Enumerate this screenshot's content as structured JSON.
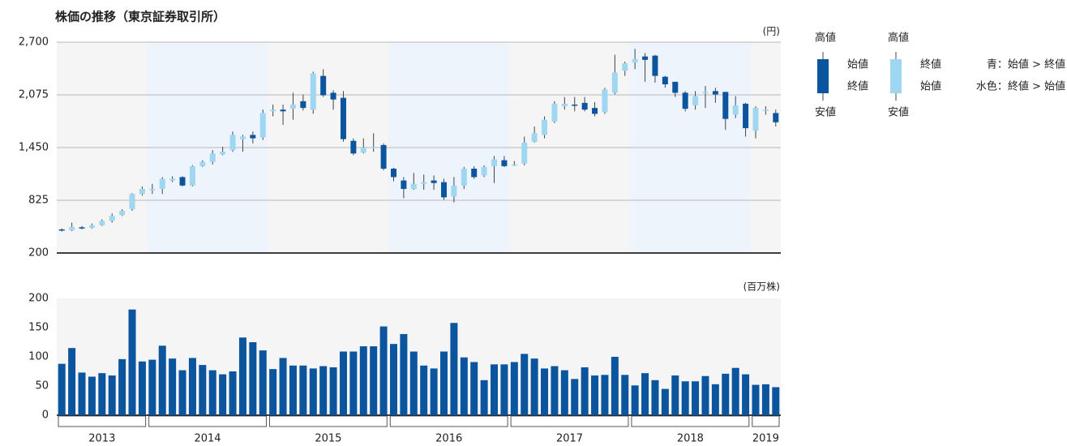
{
  "chart_data": [
    {
      "type": "candlestick",
      "title": "株価の推移（東京証券取引所）",
      "unit_label": "(円)",
      "open": [
        480,
        470,
        505,
        500,
        530,
        580,
        650,
        720,
        900,
        950,
        960,
        1060,
        1100,
        1000,
        1230,
        1280,
        1370,
        1420,
        1550,
        1600,
        1570,
        1880,
        1900,
        1910,
        2000,
        1900,
        2300,
        2100,
        2040,
        1530,
        1390,
        1450,
        1480,
        1200,
        1060,
        960,
        1020,
        1060,
        1040,
        870,
        1000,
        1200,
        1120,
        1230,
        1300,
        1240,
        1260,
        1520,
        1600,
        1760,
        1940,
        1960,
        1980,
        1920,
        1870,
        2100,
        2360,
        2460,
        2530,
        2540,
        2290,
        2230,
        2100,
        1950,
        2100,
        2120,
        2110,
        1840,
        1970,
        1650,
        1890,
        1860
      ],
      "high": [
        490,
        560,
        520,
        550,
        600,
        670,
        720,
        910,
        990,
        1020,
        1100,
        1110,
        1110,
        1240,
        1300,
        1420,
        1460,
        1640,
        1600,
        1640,
        1900,
        1960,
        1960,
        2100,
        2080,
        2350,
        2380,
        2130,
        2120,
        1560,
        1560,
        1620,
        1500,
        1210,
        1100,
        1150,
        1130,
        1120,
        1080,
        1100,
        1220,
        1230,
        1240,
        1350,
        1350,
        1290,
        1580,
        1700,
        1820,
        2000,
        2050,
        2050,
        2050,
        1990,
        2160,
        2550,
        2470,
        2620,
        2570,
        2550,
        2300,
        2230,
        2120,
        2120,
        2180,
        2160,
        2110,
        2060,
        1980,
        1940,
        1940,
        1900
      ],
      "low": [
        455,
        460,
        480,
        490,
        520,
        560,
        640,
        700,
        880,
        900,
        900,
        1040,
        990,
        990,
        1220,
        1250,
        1360,
        1400,
        1400,
        1500,
        1540,
        1820,
        1720,
        1780,
        1890,
        1850,
        2050,
        1900,
        1520,
        1360,
        1380,
        1400,
        1180,
        1050,
        850,
        950,
        950,
        950,
        830,
        800,
        960,
        1080,
        1100,
        1030,
        1220,
        1230,
        1240,
        1510,
        1560,
        1740,
        1900,
        1880,
        1880,
        1820,
        1850,
        2080,
        2300,
        2380,
        2230,
        2220,
        2160,
        2050,
        1880,
        1900,
        1920,
        1980,
        1660,
        1800,
        1580,
        1560,
        1840,
        1700
      ],
      "close": [
        470,
        510,
        495,
        530,
        580,
        640,
        700,
        900,
        960,
        960,
        1080,
        1080,
        1000,
        1230,
        1280,
        1380,
        1400,
        1600,
        1580,
        1560,
        1860,
        1900,
        1880,
        1960,
        1920,
        2330,
        2070,
        2020,
        1550,
        1380,
        1450,
        1460,
        1200,
        1100,
        960,
        1020,
        1040,
        1030,
        860,
        1000,
        1200,
        1100,
        1220,
        1310,
        1230,
        1250,
        1510,
        1620,
        1780,
        1970,
        1970,
        1950,
        1900,
        1850,
        2140,
        2340,
        2450,
        2500,
        2490,
        2300,
        2200,
        2100,
        1910,
        2060,
        2110,
        2080,
        1790,
        1950,
        1680,
        1920,
        1900,
        1750
      ],
      "up_color": "#9fd7f3",
      "down_color": "#0b559f",
      "ylim": [
        200,
        2700
      ],
      "yticks": [
        200,
        825,
        {
          "value": 1450,
          "label": "1,450"
        },
        {
          "value": 2075,
          "label": "2,075"
        },
        {
          "value": 2700,
          "label": "2,700"
        }
      ],
      "grid": true
    },
    {
      "type": "bar",
      "unit_label": "(百万株)",
      "categories": [
        "2013",
        "2013",
        "2013",
        "2013",
        "2013",
        "2013",
        "2013",
        "2013",
        "2013",
        "2014",
        "2014",
        "2014",
        "2014",
        "2014",
        "2014",
        "2014",
        "2014",
        "2014",
        "2014",
        "2014",
        "2014",
        "2015",
        "2015",
        "2015",
        "2015",
        "2015",
        "2015",
        "2015",
        "2015",
        "2015",
        "2015",
        "2015",
        "2015",
        "2016",
        "2016",
        "2016",
        "2016",
        "2016",
        "2016",
        "2016",
        "2016",
        "2016",
        "2016",
        "2016",
        "2016",
        "2017",
        "2017",
        "2017",
        "2017",
        "2017",
        "2017",
        "2017",
        "2017",
        "2017",
        "2017",
        "2017",
        "2017",
        "2018",
        "2018",
        "2018",
        "2018",
        "2018",
        "2018",
        "2018",
        "2018",
        "2018",
        "2018",
        "2018",
        "2018",
        "2019",
        "2019",
        "2019"
      ],
      "values": [
        88,
        115,
        73,
        66,
        72,
        68,
        96,
        181,
        92,
        95,
        119,
        97,
        77,
        98,
        86,
        77,
        70,
        75,
        133,
        125,
        111,
        79,
        98,
        85,
        85,
        80,
        84,
        82,
        109,
        109,
        118,
        118,
        152,
        122,
        139,
        109,
        85,
        80,
        109,
        158,
        99,
        91,
        60,
        87,
        87,
        91,
        105,
        97,
        80,
        84,
        77,
        62,
        82,
        68,
        69,
        100,
        69,
        51,
        72,
        60,
        45,
        68,
        58,
        58,
        67,
        53,
        71,
        81,
        70,
        52,
        53,
        48
      ],
      "color": "#0b559f",
      "ylim": [
        0,
        200
      ],
      "yticks": [
        0,
        50,
        100,
        150,
        200
      ],
      "grid": false
    }
  ],
  "legend": {
    "down": {
      "high": "高値",
      "open": "始値",
      "close": "終値",
      "low": "安値"
    },
    "up": {
      "high": "高値",
      "close": "終値",
      "open": "始値",
      "low": "安値"
    },
    "notes": [
      "青：始値 > 終値",
      "水色：終値 > 始値"
    ]
  }
}
